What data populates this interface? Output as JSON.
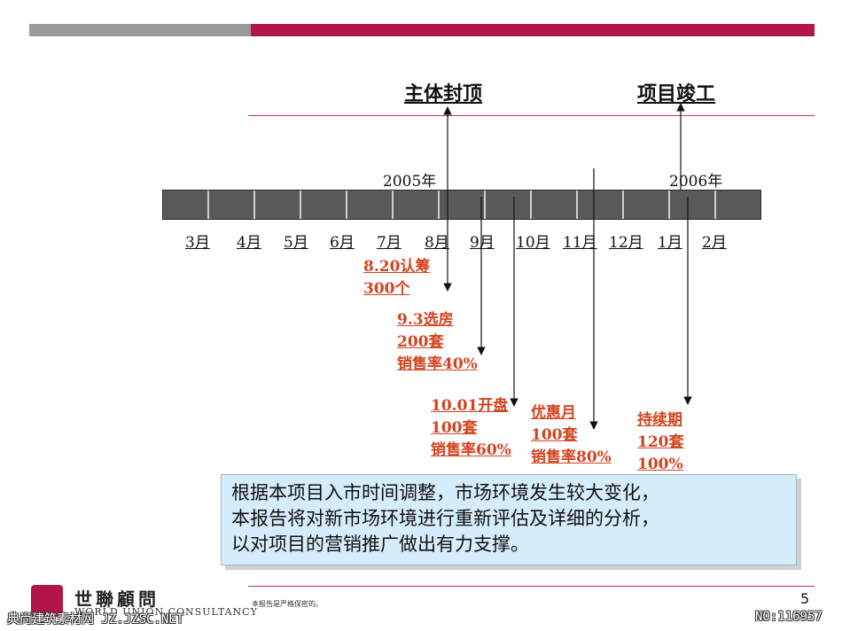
{
  "milestones": {
    "topping_out": "主体封顶",
    "completion": "项目竣工"
  },
  "years": {
    "y2005": "2005年",
    "y2006": "2006年"
  },
  "months": [
    "3月",
    "4月",
    "5月",
    "6月",
    "7月",
    "8月",
    "9月",
    "10月",
    "11月",
    "12月",
    "1月",
    "2月"
  ],
  "events": [
    {
      "lines": [
        "8.20认筹",
        "300个"
      ]
    },
    {
      "lines": [
        "9.3选房",
        "200套",
        "销售率40%"
      ]
    },
    {
      "lines": [
        "10.01开盘",
        "100套",
        "销售率60%"
      ]
    },
    {
      "lines": [
        "优惠月",
        "100套",
        "销售率80%"
      ]
    },
    {
      "lines": [
        "持续期",
        "120套",
        "100%"
      ]
    }
  ],
  "callout": {
    "lines": [
      "根据本项目入市时间调整，市场环境发生较大变化，",
      "本报告将对新市场环境进行重新评估及详细的分析，",
      "以对项目的营销推广做出有力支撑。"
    ]
  },
  "footer": {
    "confidential": "本报告是严格保密的。",
    "page_number": "5",
    "logo_cn": "世聯顧問",
    "logo_en": "WORLD UNION CONSULTANCY",
    "watermark_left": "典尚建筑素材网 JZ.JZSC.NET",
    "watermark_right": "NO:116957"
  },
  "colors": {
    "brand": "#b1154a",
    "event_text": "#d4431e",
    "timeline": "#595959",
    "callout_bg": "#d5ecfa"
  }
}
